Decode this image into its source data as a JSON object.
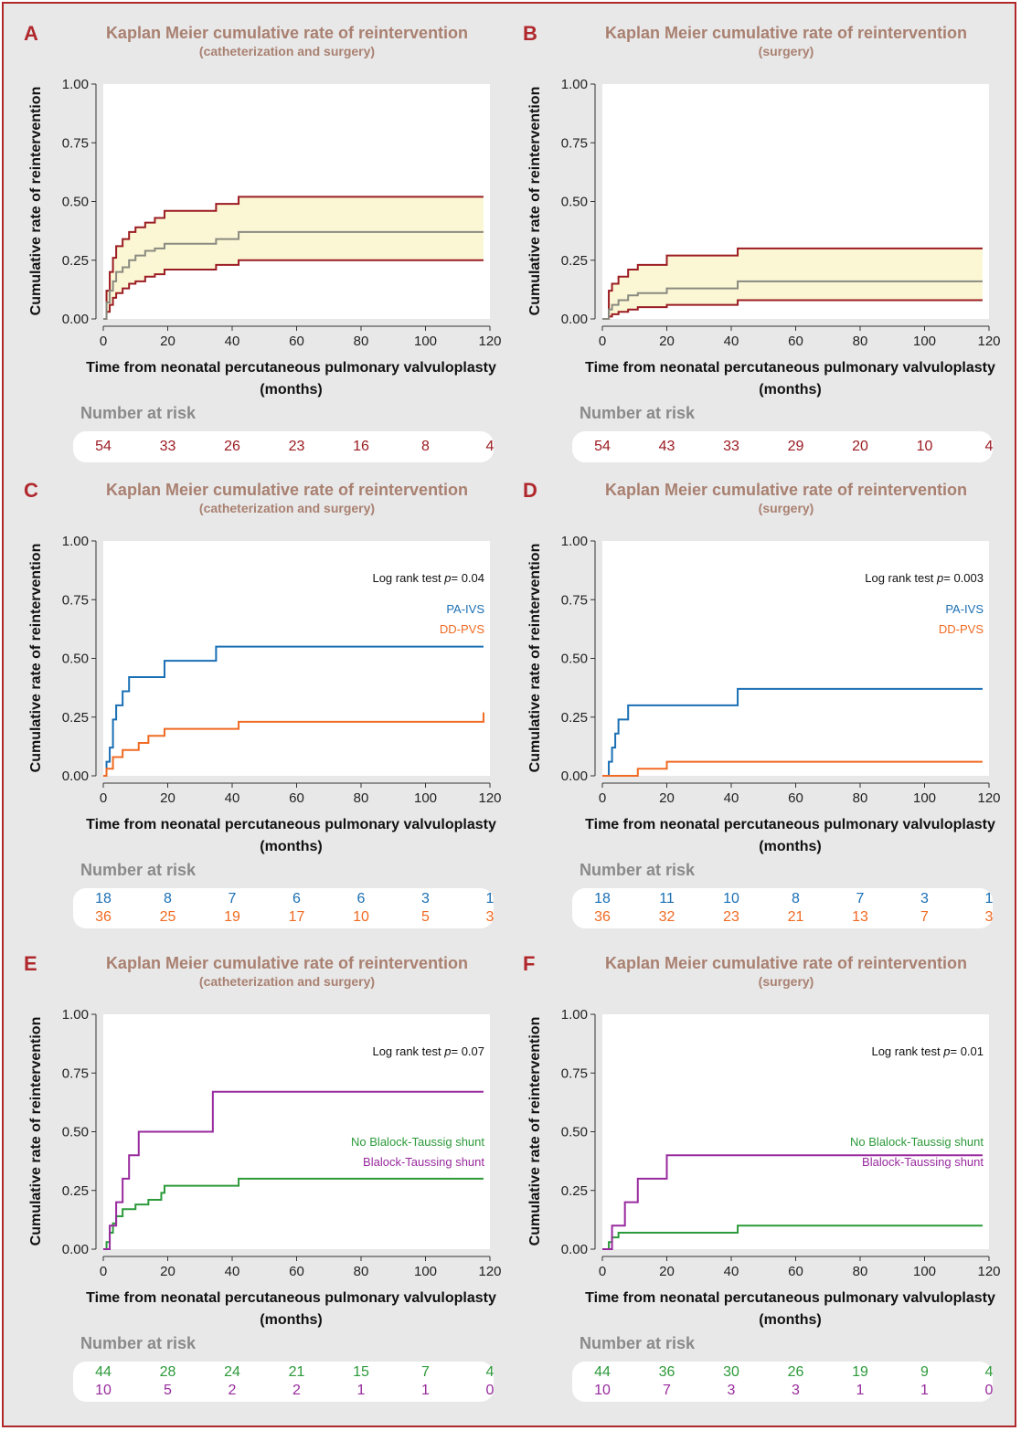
{
  "colors": {
    "frame": "#b0282c",
    "title": "#a98070",
    "band": "#fbf7d4",
    "ci": "#9b1c22",
    "median": "#8a8a80",
    "pa_ivs": "#1a6fb4",
    "dd_pvs": "#f06a22",
    "no_bt": "#2c9a3a",
    "bt": "#982a9e",
    "risk_label": "#8a8a8a"
  },
  "panels": [
    {
      "letter": "A",
      "title": "Kaplan Meier cumulative rate of reintervention",
      "subtitle": "(catheterization and surgery)",
      "number_at_risk_label": "Number at risk",
      "risk_rows": [
        {
          "color": "#9b1c22",
          "values": [
            "54",
            "33",
            "26",
            "23",
            "16",
            "8",
            "4"
          ]
        }
      ],
      "chart_data": {
        "type": "line",
        "xlabel": "Time from neonatal percutaneous pulmonary valvuloplasty",
        "xlabel2": "(months)",
        "ylabel": "Cumulative rate of reintervention",
        "xlim": [
          0,
          120
        ],
        "ylim": [
          0,
          1
        ],
        "xticks": [
          "0",
          "20",
          "40",
          "60",
          "80",
          "100",
          "120"
        ],
        "yticks": [
          "0.00",
          "0.25",
          "0.50",
          "0.75",
          "1.00"
        ],
        "band": {
          "x": [
            0,
            1,
            2,
            3,
            4,
            6,
            8,
            10,
            13,
            16,
            19,
            35,
            42,
            118
          ],
          "lower": [
            0,
            0.03,
            0.06,
            0.09,
            0.11,
            0.13,
            0.15,
            0.16,
            0.18,
            0.19,
            0.21,
            0.23,
            0.25,
            0.25
          ],
          "upper": [
            0,
            0.12,
            0.2,
            0.26,
            0.31,
            0.34,
            0.37,
            0.39,
            0.41,
            0.43,
            0.46,
            0.49,
            0.52,
            0.52
          ]
        },
        "series": [
          {
            "style": "median",
            "color": "#8a8a80",
            "x": [
              0,
              1,
              2,
              3,
              4,
              6,
              8,
              10,
              13,
              16,
              19,
              35,
              42,
              118
            ],
            "y": [
              0,
              0.07,
              0.12,
              0.16,
              0.2,
              0.22,
              0.25,
              0.27,
              0.29,
              0.3,
              0.32,
              0.34,
              0.37,
              0.37
            ]
          }
        ],
        "note": "",
        "legend": []
      }
    },
    {
      "letter": "B",
      "title": "Kaplan Meier cumulative rate of reintervention",
      "subtitle": "(surgery)",
      "number_at_risk_label": "Number at risk",
      "risk_rows": [
        {
          "color": "#9b1c22",
          "values": [
            "54",
            "43",
            "33",
            "29",
            "20",
            "10",
            "4"
          ]
        }
      ],
      "chart_data": {
        "type": "line",
        "xlabel": "Time from neonatal percutaneous pulmonary valvuloplasty",
        "xlabel2": "(months)",
        "ylabel": "Cumulative rate of reintervention",
        "xlim": [
          0,
          120
        ],
        "ylim": [
          0,
          1
        ],
        "xticks": [
          "0",
          "20",
          "40",
          "60",
          "80",
          "100",
          "120"
        ],
        "yticks": [
          "0.00",
          "0.25",
          "0.50",
          "0.75",
          "1.00"
        ],
        "band": {
          "x": [
            0,
            2,
            3,
            5,
            8,
            11,
            20,
            42,
            118
          ],
          "lower": [
            0,
            0.01,
            0.02,
            0.03,
            0.04,
            0.05,
            0.06,
            0.08,
            0.08
          ],
          "upper": [
            0,
            0.12,
            0.15,
            0.18,
            0.21,
            0.23,
            0.27,
            0.3,
            0.3
          ]
        },
        "series": [
          {
            "style": "median",
            "color": "#8a8a80",
            "x": [
              0,
              2,
              3,
              5,
              8,
              11,
              20,
              42,
              118
            ],
            "y": [
              0,
              0.04,
              0.06,
              0.08,
              0.1,
              0.11,
              0.13,
              0.16,
              0.16
            ]
          }
        ],
        "note": "",
        "legend": []
      }
    },
    {
      "letter": "C",
      "title": "Kaplan Meier cumulative rate of reintervention",
      "subtitle": "(catheterization and surgery)",
      "number_at_risk_label": "Number at risk",
      "risk_rows": [
        {
          "color": "#1a6fb4",
          "values": [
            "18",
            "8",
            "7",
            "6",
            "6",
            "3",
            "1"
          ]
        },
        {
          "color": "#f06a22",
          "values": [
            "36",
            "25",
            "19",
            "17",
            "10",
            "5",
            "3"
          ]
        }
      ],
      "chart_data": {
        "type": "line",
        "xlabel": "Time from neonatal percutaneous pulmonary valvuloplasty",
        "xlabel2": "(months)",
        "ylabel": "Cumulative rate of reintervention",
        "xlim": [
          0,
          120
        ],
        "ylim": [
          0,
          1
        ],
        "xticks": [
          "0",
          "20",
          "40",
          "60",
          "80",
          "100",
          "120"
        ],
        "yticks": [
          "0.00",
          "0.25",
          "0.50",
          "0.75",
          "1.00"
        ],
        "series": [
          {
            "name": "PA-IVS",
            "color": "#1a6fb4",
            "x": [
              0,
              1,
              2,
              3,
              4,
              6,
              8,
              19,
              35,
              118
            ],
            "y": [
              0,
              0.06,
              0.12,
              0.24,
              0.3,
              0.36,
              0.42,
              0.49,
              0.55,
              0.55
            ]
          },
          {
            "name": "DD-PVS",
            "color": "#f06a22",
            "x": [
              0,
              1,
              3,
              6,
              11,
              14,
              19,
              42,
              118
            ],
            "y": [
              0,
              0.03,
              0.08,
              0.11,
              0.14,
              0.17,
              0.2,
              0.23,
              0.27
            ]
          }
        ],
        "note_prefix": "Log rank test ",
        "note_p": "p",
        "note_value": "= 0.04",
        "legend": [
          {
            "label": "PA-IVS",
            "color": "#1a6fb4"
          },
          {
            "label": "DD-PVS",
            "color": "#f06a22"
          }
        ]
      }
    },
    {
      "letter": "D",
      "title": "Kaplan Meier cumulative rate of reintervention",
      "subtitle": "(surgery)",
      "number_at_risk_label": "Number at risk",
      "risk_rows": [
        {
          "color": "#1a6fb4",
          "values": [
            "18",
            "11",
            "10",
            "8",
            "7",
            "3",
            "1"
          ]
        },
        {
          "color": "#f06a22",
          "values": [
            "36",
            "32",
            "23",
            "21",
            "13",
            "7",
            "3"
          ]
        }
      ],
      "chart_data": {
        "type": "line",
        "xlabel": "Time from neonatal percutaneous pulmonary valvuloplasty",
        "xlabel2": "(months)",
        "ylabel": "Cumulative rate of reintervention",
        "xlim": [
          0,
          120
        ],
        "ylim": [
          0,
          1
        ],
        "xticks": [
          "0",
          "20",
          "40",
          "60",
          "80",
          "100",
          "120"
        ],
        "yticks": [
          "0.00",
          "0.25",
          "0.50",
          "0.75",
          "1.00"
        ],
        "series": [
          {
            "name": "PA-IVS",
            "color": "#1a6fb4",
            "x": [
              0,
              2,
              3,
              4,
              5,
              8,
              42,
              118
            ],
            "y": [
              0,
              0.06,
              0.12,
              0.18,
              0.24,
              0.3,
              0.37,
              0.37
            ]
          },
          {
            "name": "DD-PVS",
            "color": "#f06a22",
            "x": [
              0,
              11,
              20,
              118
            ],
            "y": [
              0,
              0.03,
              0.06,
              0.06
            ]
          }
        ],
        "note_prefix": "Log rank test ",
        "note_p": "p",
        "note_value": "= 0.003",
        "legend": [
          {
            "label": "PA-IVS",
            "color": "#1a6fb4"
          },
          {
            "label": "DD-PVS",
            "color": "#f06a22"
          }
        ]
      }
    },
    {
      "letter": "E",
      "title": "Kaplan Meier cumulative rate of reintervention",
      "subtitle": "(catheterization and surgery)",
      "number_at_risk_label": "Number at risk",
      "risk_rows": [
        {
          "color": "#2c9a3a",
          "values": [
            "44",
            "28",
            "24",
            "21",
            "15",
            "7",
            "4"
          ]
        },
        {
          "color": "#982a9e",
          "values": [
            "10",
            "5",
            "2",
            "2",
            "1",
            "1",
            "0"
          ]
        }
      ],
      "chart_data": {
        "type": "line",
        "xlabel": "Time from neonatal percutaneous pulmonary valvuloplasty",
        "xlabel2": "(months)",
        "ylabel": "Cumulative rate of reintervention",
        "xlim": [
          0,
          120
        ],
        "ylim": [
          0,
          1
        ],
        "xticks": [
          "0",
          "20",
          "40",
          "60",
          "80",
          "100",
          "120"
        ],
        "yticks": [
          "0.00",
          "0.25",
          "0.50",
          "0.75",
          "1.00"
        ],
        "series": [
          {
            "name": "No Blalock-Taussig shunt",
            "color": "#2c9a3a",
            "x": [
              0,
              1,
              2,
              3,
              4,
              6,
              10,
              14,
              18,
              19,
              42,
              118
            ],
            "y": [
              0,
              0.03,
              0.07,
              0.11,
              0.14,
              0.17,
              0.19,
              0.21,
              0.24,
              0.27,
              0.3,
              0.3
            ]
          },
          {
            "name": "Blalock-Taussing shunt",
            "color": "#982a9e",
            "x": [
              0,
              2,
              4,
              6,
              8,
              11,
              34,
              118
            ],
            "y": [
              0,
              0.1,
              0.2,
              0.3,
              0.4,
              0.5,
              0.67,
              0.67
            ]
          }
        ],
        "note_prefix": "Log rank test ",
        "note_p": "p",
        "note_value": "= 0.07",
        "legend": [
          {
            "label": "No Blalock-Taussig shunt",
            "color": "#2c9a3a"
          },
          {
            "label": "Blalock-Taussing shunt",
            "color": "#982a9e"
          }
        ]
      }
    },
    {
      "letter": "F",
      "title": "Kaplan Meier cumulative rate of reintervention",
      "subtitle": "(surgery)",
      "number_at_risk_label": "Number at risk",
      "risk_rows": [
        {
          "color": "#2c9a3a",
          "values": [
            "44",
            "36",
            "30",
            "26",
            "19",
            "9",
            "4"
          ]
        },
        {
          "color": "#982a9e",
          "values": [
            "10",
            "7",
            "3",
            "3",
            "1",
            "1",
            "0"
          ]
        }
      ],
      "chart_data": {
        "type": "line",
        "xlabel": "Time from neonatal percutaneous pulmonary valvuloplasty",
        "xlabel2": "(months)",
        "ylabel": "Cumulative rate of reintervention",
        "xlim": [
          0,
          120
        ],
        "ylim": [
          0,
          1
        ],
        "xticks": [
          "0",
          "20",
          "40",
          "60",
          "80",
          "100",
          "120"
        ],
        "yticks": [
          "0.00",
          "0.25",
          "0.50",
          "0.75",
          "1.00"
        ],
        "series": [
          {
            "name": "No Blalock-Taussig shunt",
            "color": "#2c9a3a",
            "x": [
              0,
              2,
              3,
              5,
              42,
              118
            ],
            "y": [
              0,
              0.03,
              0.05,
              0.07,
              0.1,
              0.1
            ]
          },
          {
            "name": "Blalock-Taussing shunt",
            "color": "#982a9e",
            "x": [
              0,
              3,
              7,
              11,
              20,
              118
            ],
            "y": [
              0,
              0.1,
              0.2,
              0.3,
              0.4,
              0.4
            ]
          }
        ],
        "note_prefix": "Log rank test ",
        "note_p": "p",
        "note_value": "= 0.01",
        "legend": [
          {
            "label": "No Blalock-Taussig shunt",
            "color": "#2c9a3a"
          },
          {
            "label": "Blalock-Taussing shunt",
            "color": "#982a9e"
          }
        ]
      }
    }
  ]
}
